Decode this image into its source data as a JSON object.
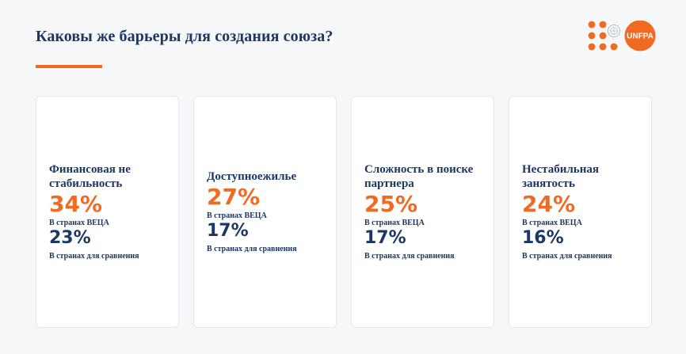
{
  "header": {
    "title": "Каковы же барьеры для создания союза?",
    "logo_text": "UNFPA"
  },
  "colors": {
    "accent": "#f26a21",
    "navy": "#1b3764",
    "background": "#f6f7f8",
    "card": "#ffffff"
  },
  "cards": [
    {
      "title": "Финансовая не стабильность",
      "main_value": "34%",
      "main_caption": "В странах ВЕЦА",
      "compare_value": "23%",
      "compare_caption": "В странах для сравнения"
    },
    {
      "title": "Доступноежилье",
      "main_value": "27%",
      "main_caption": "В странах ВЕЦА",
      "compare_value": "17%",
      "compare_caption": "В странах для сравнения"
    },
    {
      "title": "Сложность в поиске партнера",
      "main_value": "25%",
      "main_caption": "В странах ВЕЦА",
      "compare_value": "17%",
      "compare_caption": "В странах для сравнения"
    },
    {
      "title": "Нестабильная занятость",
      "main_value": "24%",
      "main_caption": "В странах ВЕЦА",
      "compare_value": "16%",
      "compare_caption": "В странах для сравнения"
    }
  ]
}
